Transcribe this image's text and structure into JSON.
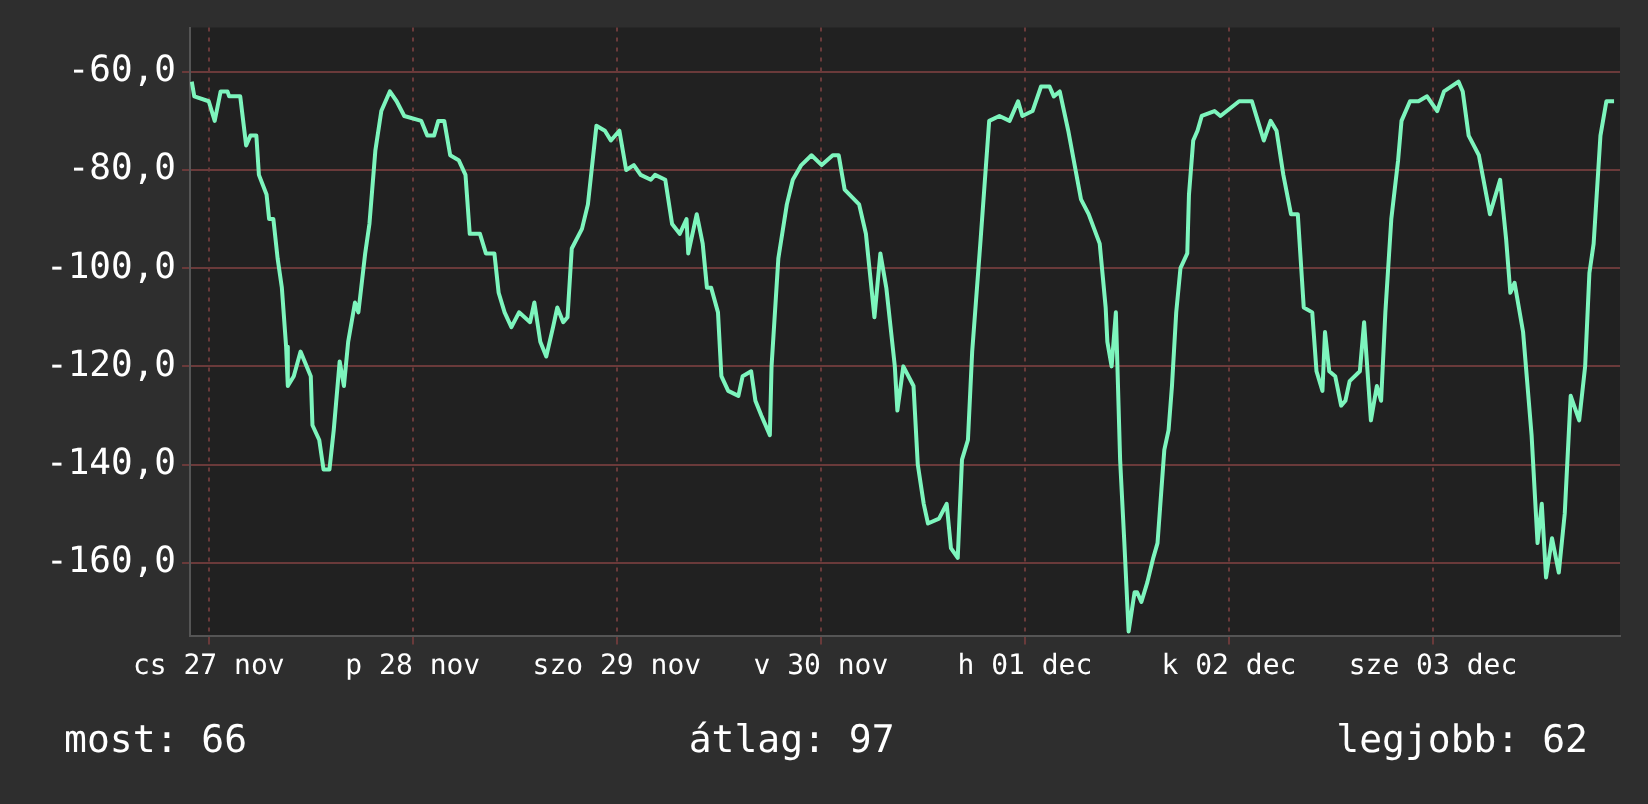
{
  "chart_data": {
    "type": "line",
    "x": [
      "--11-27T10:00",
      "--11-27T10:18",
      "--11-27T12:00",
      "--11-27T12:42",
      "--11-27T13:24",
      "--11-27T14:12",
      "--11-27T14:24",
      "--11-27T15:42",
      "--11-27T16:24",
      "--11-27T16:54",
      "--11-27T17:36",
      "--11-27T17:54",
      "--11-27T18:48",
      "--11-27T19:06",
      "--11-27T19:36",
      "--11-27T20:06",
      "--11-27T20:36",
      "--11-27T21:06",
      "--11-27T21:18",
      "--11-27T22:00",
      "--11-27T22:48",
      "--11-28T00:00",
      "--11-28T00:12",
      "--11-28T01:00",
      "--11-28T01:30",
      "--11-28T02:12",
      "--11-28T02:42",
      "--11-28T03:24",
      "--11-28T03:54",
      "--11-28T04:24",
      "--11-28T05:12",
      "--11-28T05:36",
      "--11-28T06:24",
      "--11-28T06:54",
      "--11-28T07:36",
      "--11-28T08:18",
      "--11-28T09:18",
      "--11-28T10:06",
      "--11-28T11:00",
      "--11-28T13:00",
      "--11-28T13:42",
      "--11-28T14:30",
      "--11-28T15:00",
      "--11-28T15:42",
      "--11-28T16:24",
      "--11-28T17:24",
      "--11-28T18:12",
      "--11-28T18:42",
      "--11-28T19:54",
      "--11-28T20:36",
      "--11-28T21:36",
      "--11-28T22:06",
      "--11-28T22:48",
      "--11-28T23:36",
      "--11-29T00:30",
      "--11-29T01:48",
      "--11-29T02:18",
      "--11-29T03:00",
      "--11-29T03:42",
      "--11-29T04:30",
      "--11-29T05:00",
      "--11-29T05:42",
      "--11-29T06:12",
      "--11-29T06:42",
      "--11-29T07:54",
      "--11-29T08:36",
      "--11-29T09:06",
      "--11-29T09:36",
      "--11-29T10:36",
      "--11-29T11:18",
      "--11-29T12:18",
      "--11-29T13:06",
      "--11-29T14:00",
      "--11-29T14:48",
      "--11-29T16:00",
      "--11-29T16:30",
      "--11-29T17:42",
      "--11-29T18:30",
      "--11-29T19:24",
      "--11-29T20:12",
      "--11-29T20:24",
      "--11-29T21:24",
      "--11-29T22:06",
      "--11-29T22:36",
      "--11-29T23:06",
      "--11-29T23:54",
      "--11-30T00:18",
      "--11-30T01:06",
      "--11-30T02:18",
      "--11-30T02:48",
      "--11-30T03:48",
      "--11-30T04:18",
      "--11-30T05:00",
      "--11-30T06:00",
      "--11-30T06:12",
      "--11-30T07:00",
      "--11-30T08:00",
      "--11-30T08:42",
      "--11-30T09:42",
      "--11-30T10:54",
      "--11-30T12:06",
      "--11-30T13:24",
      "--11-30T14:06",
      "--11-30T14:48",
      "--11-30T16:30",
      "--11-30T17:18",
      "--11-30T18:18",
      "--11-30T19:00",
      "--11-30T19:42",
      "--11-30T20:42",
      "--11-30T21:00",
      "--11-30T21:42",
      "--11-30T22:54",
      "--11-30T23:24",
      "--12-01T00:06",
      "--12-01T00:36",
      "--12-01T01:54",
      "--12-01T02:48",
      "--12-01T03:18",
      "--12-01T04:06",
      "--12-01T04:36",
      "--12-01T05:18",
      "--12-01T05:48",
      "--12-01T06:48",
      "--12-01T07:48",
      "--12-01T09:00",
      "--12-01T10:12",
      "--12-01T11:12",
      "--12-01T11:42",
      "--12-01T12:54",
      "--12-01T13:54",
      "--12-01T14:54",
      "--12-01T15:24",
      "--12-01T16:06",
      "--12-01T17:06",
      "--12-01T18:36",
      "--12-01T19:30",
      "--12-01T20:48",
      "--12-01T21:30",
      "--12-01T21:42",
      "--12-01T22:12",
      "--12-01T22:42",
      "--12-01T23:12",
      "--12-01T23:42",
      "--12-02T00:12",
      "--12-02T00:54",
      "--12-02T01:12",
      "--12-02T01:42",
      "--12-02T02:24",
      "--12-02T03:06",
      "--12-02T03:36",
      "--12-02T04:24",
      "--12-02T04:54",
      "--12-02T05:18",
      "--12-02T05:48",
      "--12-02T06:18",
      "--12-02T07:06",
      "--12-02T07:18",
      "--12-02T07:48",
      "--12-02T08:18",
      "--12-02T08:48",
      "--12-02T10:18",
      "--12-02T11:00",
      "--12-02T13:12",
      "--12-02T13:54",
      "--12-02T14:42",
      "--12-02T15:24",
      "--12-02T16:06",
      "--12-02T16:54",
      "--12-02T17:36",
      "--12-02T18:24",
      "--12-02T19:18",
      "--12-02T20:06",
      "--12-02T20:48",
      "--12-02T21:48",
      "--12-02T22:18",
      "--12-02T23:00",
      "--12-02T23:18",
      "--12-02T23:48",
      "--12-03T00:30",
      "--12-03T01:12",
      "--12-03T01:42",
      "--12-03T02:12",
      "--12-03T03:24",
      "--12-03T03:54",
      "--12-03T04:42",
      "--12-03T05:24",
      "--12-03T05:54",
      "--12-03T06:24",
      "--12-03T07:06",
      "--12-03T07:54",
      "--12-03T08:18",
      "--12-03T09:18",
      "--12-03T10:18",
      "--12-03T11:18",
      "--12-03T12:30",
      "--12-03T13:18",
      "--12-03T15:00",
      "--12-03T15:30",
      "--12-03T16:12",
      "--12-03T17:24",
      "--12-03T18:42",
      "--12-03T19:54",
      "--12-03T20:36",
      "--12-03T21:06",
      "--12-03T21:36",
      "--12-03T22:36",
      "--12-03T23:36",
      "--12-04T00:18",
      "--12-04T00:48",
      "--12-04T01:18",
      "--12-04T02:00",
      "--12-04T02:48",
      "--12-04T03:30",
      "--12-04T04:12",
      "--12-04T05:12",
      "--12-04T05:54",
      "--12-04T06:24",
      "--12-04T06:54",
      "--12-04T07:42",
      "--12-04T08:24",
      "--12-04T09:18"
    ],
    "series": [
      {
        "color": "#7df5bd",
        "values": [
          -62,
          -65,
          -66,
          -70,
          -64,
          -64,
          -65,
          -65,
          -75,
          -73,
          -73,
          -81,
          -85,
          -90,
          -90,
          -98,
          -104,
          -116,
          -124,
          -122,
          -117,
          -122,
          -132,
          -135,
          -141,
          -141,
          -133,
          -119,
          -124,
          -115,
          -107,
          -109,
          -97,
          -91,
          -76,
          -68,
          -64,
          -66,
          -69,
          -70,
          -73,
          -73,
          -70,
          -70,
          -77,
          -78,
          -81,
          -93,
          -93,
          -97,
          -97,
          -105,
          -109,
          -112,
          -109,
          -111,
          -107,
          -115,
          -118,
          -112,
          -108,
          -111,
          -110,
          -96,
          -92,
          -87,
          -79,
          -71,
          -72,
          -74,
          -72,
          -80,
          -79,
          -81,
          -82,
          -81,
          -82,
          -91,
          -93,
          -90,
          -97,
          -89,
          -95,
          -104,
          -104,
          -109,
          -122,
          -125,
          -126,
          -122,
          -121,
          -127,
          -130,
          -134,
          -120,
          -98,
          -87,
          -82,
          -79,
          -77,
          -79,
          -77,
          -77,
          -84,
          -87,
          -93,
          -110,
          -97,
          -104,
          -120,
          -129,
          -120,
          -124,
          -140,
          -148,
          -152,
          -151,
          -148,
          -157,
          -159,
          -139,
          -135,
          -117,
          -94,
          -70,
          -69,
          -70,
          -66,
          -69,
          -68,
          -63,
          -63,
          -65,
          -64,
          -72,
          -86,
          -89,
          -95,
          -108,
          -115,
          -120,
          -109,
          -139,
          -156,
          -174,
          -166,
          -166,
          -168,
          -164,
          -159,
          -156,
          -137,
          -133,
          -124,
          -109,
          -100,
          -97,
          -85,
          -74,
          -72,
          -69,
          -68,
          -69,
          -66,
          -66,
          -66,
          -70,
          -74,
          -70,
          -72,
          -81,
          -89,
          -89,
          -108,
          -109,
          -121,
          -125,
          -113,
          -121,
          -122,
          -128,
          -127,
          -123,
          -121,
          -111,
          -131,
          -124,
          -127,
          -109,
          -90,
          -78,
          -70,
          -66,
          -66,
          -65,
          -68,
          -64,
          -62,
          -64,
          -73,
          -77,
          -89,
          -82,
          -94,
          -105,
          -103,
          -113,
          -134,
          -156,
          -148,
          -163,
          -155,
          -162,
          -150,
          -126,
          -131,
          -120,
          -101,
          -95,
          -73,
          -66,
          -66
        ]
      }
    ],
    "xlim": [
      "--11-27T09:48",
      "--12-04T10:00"
    ],
    "xticks": [
      {
        "value": "--11-27T12:00",
        "label": "cs 27 nov"
      },
      {
        "value": "--11-28T12:00",
        "label": "p 28 nov"
      },
      {
        "value": "--11-29T12:00",
        "label": "szo 29 nov"
      },
      {
        "value": "--11-30T12:00",
        "label": "v 30 nov"
      },
      {
        "value": "--12-01T12:00",
        "label": "h 01 dec"
      },
      {
        "value": "--12-02T12:00",
        "label": "k 02 dec"
      },
      {
        "value": "--12-03T12:00",
        "label": "sze 03 dec"
      }
    ],
    "ylim": [
      -175,
      -51
    ],
    "yticks": [
      {
        "value": -60,
        "label": "-60,0"
      },
      {
        "value": -80,
        "label": "-80,0"
      },
      {
        "value": -100,
        "label": "-100,0"
      },
      {
        "value": -120,
        "label": "-120,0"
      },
      {
        "value": -140,
        "label": "-140,0"
      },
      {
        "value": -160,
        "label": "-160,0"
      }
    ],
    "grid": true,
    "legend": false,
    "marker": "none",
    "line_style": "solid",
    "annotations": [
      "most: 66",
      "átlag: 97",
      "legjobb: 62"
    ]
  }
}
